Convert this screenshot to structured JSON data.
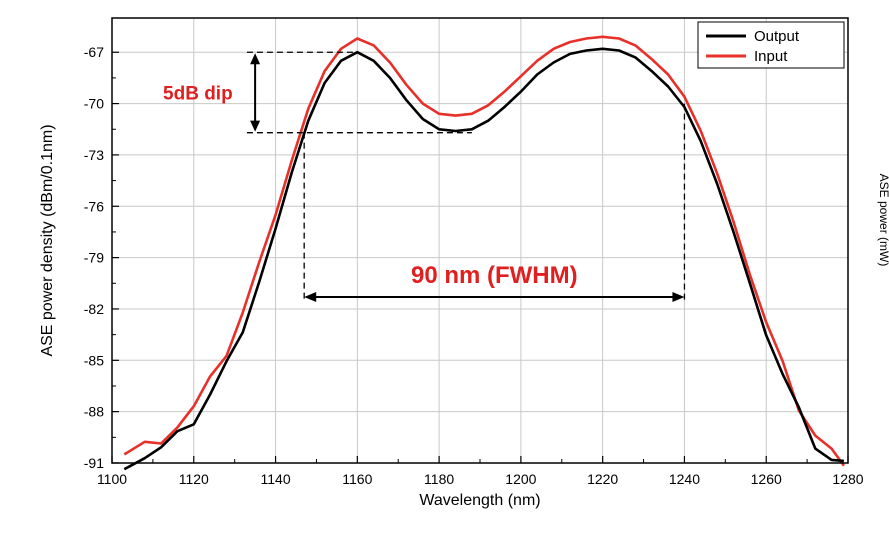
{
  "chart_data": {
    "type": "line",
    "title": "",
    "xlabel": "Wavelength (nm)",
    "ylabel": "ASE power density (dBm/0.1nm)",
    "xlim": [
      1100,
      1280
    ],
    "ylim": [
      -91,
      -65
    ],
    "xticks": [
      1100,
      1120,
      1140,
      1160,
      1180,
      1200,
      1220,
      1240,
      1260,
      1280
    ],
    "yticks": [
      -91,
      -88,
      -85,
      -82,
      -79,
      -76,
      -73,
      -70,
      -67
    ],
    "grid": true,
    "legend_position": "top-right",
    "series": [
      {
        "name": "Output",
        "color": "#000000",
        "x": [
          1103,
          1108,
          1112,
          1116,
          1120,
          1124,
          1128,
          1132,
          1136,
          1140,
          1144,
          1148,
          1152,
          1156,
          1160,
          1164,
          1168,
          1172,
          1176,
          1180,
          1184,
          1188,
          1192,
          1196,
          1200,
          1204,
          1208,
          1212,
          1216,
          1220,
          1224,
          1228,
          1232,
          1236,
          1240,
          1244,
          1248,
          1252,
          1256,
          1260,
          1264,
          1268,
          1272,
          1276,
          1279
        ],
        "y": [
          -91.0,
          -90.6,
          -90.2,
          -89.5,
          -88.5,
          -87.0,
          -85.3,
          -83.0,
          -80.3,
          -77.3,
          -74.0,
          -71.0,
          -68.8,
          -67.5,
          -67.0,
          -67.5,
          -68.5,
          -69.8,
          -70.9,
          -71.5,
          -71.6,
          -71.5,
          -71.0,
          -70.2,
          -69.3,
          -68.3,
          -67.6,
          -67.1,
          -66.9,
          -66.8,
          -66.9,
          -67.3,
          -68.1,
          -69.0,
          -70.2,
          -72.2,
          -74.7,
          -77.5,
          -80.5,
          -83.3,
          -85.8,
          -88.0,
          -89.8,
          -90.7,
          -91.0
        ]
      },
      {
        "name": "Input",
        "color": "#e8302a",
        "x": [
          1103,
          1108,
          1112,
          1116,
          1120,
          1124,
          1128,
          1132,
          1136,
          1140,
          1144,
          1148,
          1152,
          1156,
          1160,
          1164,
          1168,
          1172,
          1176,
          1180,
          1184,
          1188,
          1192,
          1196,
          1200,
          1204,
          1208,
          1212,
          1216,
          1220,
          1224,
          1228,
          1232,
          1236,
          1240,
          1244,
          1248,
          1252,
          1256,
          1260,
          1264,
          1268,
          1272,
          1276,
          1279
        ],
        "y": [
          -90.5,
          -90.0,
          -89.5,
          -88.8,
          -87.8,
          -86.3,
          -84.5,
          -82.2,
          -79.5,
          -76.5,
          -73.3,
          -70.3,
          -68.1,
          -66.8,
          -66.2,
          -66.6,
          -67.6,
          -68.9,
          -70.0,
          -70.6,
          -70.7,
          -70.6,
          -70.1,
          -69.3,
          -68.4,
          -67.5,
          -66.8,
          -66.4,
          -66.2,
          -66.1,
          -66.2,
          -66.6,
          -67.4,
          -68.3,
          -69.6,
          -71.6,
          -74.1,
          -76.9,
          -80.0,
          -82.9,
          -85.4,
          -87.7,
          -89.4,
          -90.4,
          -90.8
        ]
      }
    ],
    "annotations": {
      "dip_label": "5dB dip",
      "dip_top_dbm": -67,
      "dip_bottom_dbm": -71.7,
      "dip_marker_wavelength_nm": 1135,
      "fwhm_label": "90 nm (FWHM)",
      "fwhm_left_nm": 1147,
      "fwhm_right_nm": 1240,
      "fwhm_arrow_level_dbm": -81.3
    },
    "right_axis_label": "ASE power (mW)"
  }
}
